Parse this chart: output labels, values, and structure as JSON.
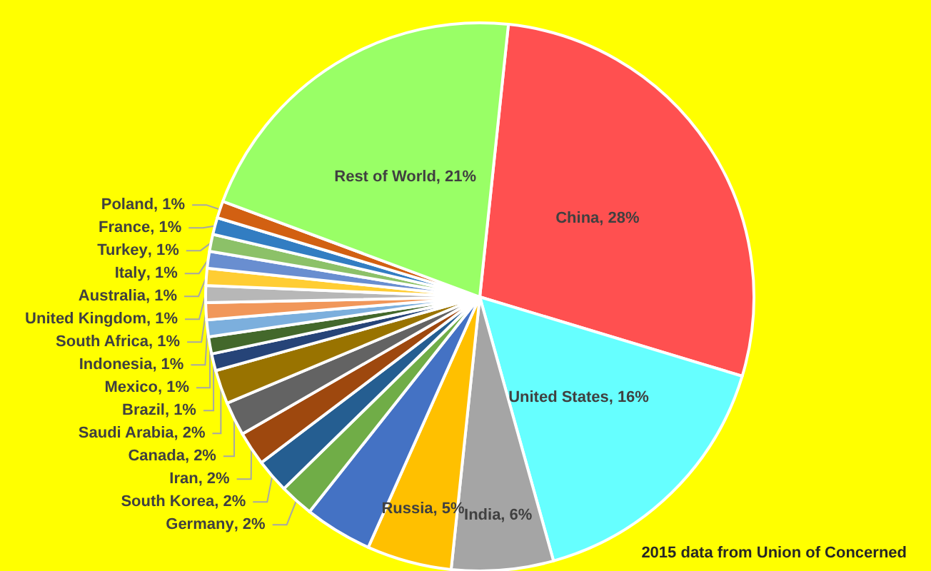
{
  "chart_data": {
    "type": "pie",
    "categories": [
      "China",
      "United States",
      "India",
      "Russia",
      null,
      "Germany",
      "South Korea",
      "Iran",
      "Canada",
      "Saudi Arabia",
      "Brazil",
      "Mexico",
      "Indonesia",
      "South Africa",
      "United Kingdom",
      "Australia",
      "Italy",
      "Turkey",
      "France",
      "Poland",
      "Rest of World"
    ],
    "values": [
      28,
      16,
      6,
      5,
      4,
      2,
      2,
      2,
      2,
      2,
      1,
      1,
      1,
      1,
      1,
      1,
      1,
      1,
      1,
      1,
      21
    ],
    "value_labels": [
      ", 28%",
      ", 16%",
      ", 6%",
      ", 5%",
      null,
      ", 2%",
      ", 2%",
      ", 2%",
      ", 2%",
      ", 2%",
      ", 1%",
      ", 1%",
      ", 1%",
      ", 1%",
      ", 1%",
      ", 1%",
      ", 1%",
      ", 1%",
      ", 1%",
      ", 1%",
      ", 21%"
    ],
    "colors": [
      "#ff5050",
      "#66ffff",
      "#a5a5a5",
      "#ffc000",
      "#4472c4",
      "#70ad47",
      "#255e91",
      "#9e480e",
      "#636363",
      "#997300",
      "#264478",
      "#43682b",
      "#7cafdd",
      "#f1975a",
      "#b7b7b7",
      "#ffcd33",
      "#698ed0",
      "#8cc168",
      "#327dc2",
      "#d26012",
      "#99ff66"
    ],
    "legend": false,
    "annotations": [
      "2015 data from Union of Concerned"
    ]
  }
}
